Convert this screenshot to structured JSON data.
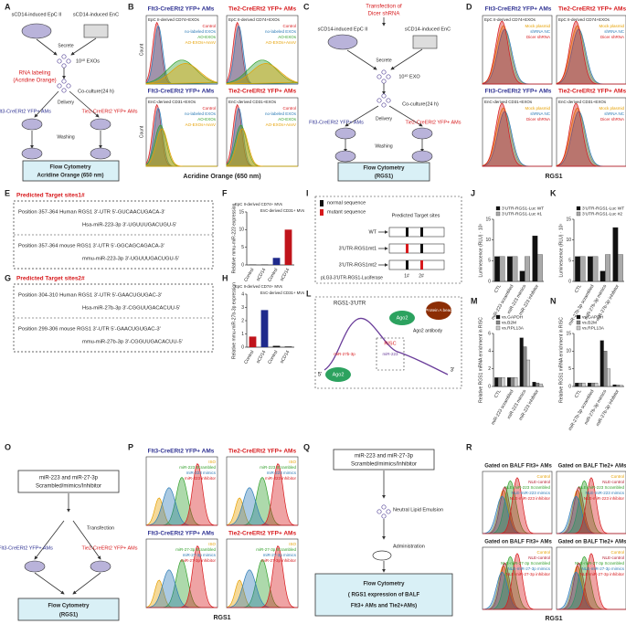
{
  "panel_labels": [
    "A",
    "B",
    "C",
    "D",
    "E",
    "F",
    "G",
    "H",
    "I",
    "J",
    "K",
    "L",
    "M",
    "N",
    "O",
    "P",
    "Q",
    "R"
  ],
  "A": {
    "epc": "sCD14-induced EpC II",
    "enc": "sCD14-induced EnC",
    "secrete": "Secrete",
    "exos": "10¹⁰ EXOs",
    "labeling1": "RNA labeling",
    "labeling2": "(Acridine Orange)",
    "coculture": "Co-culture(24 h)",
    "delivery": "Delivery",
    "flt3": "Flt3-CreERt2 YFP+ AMs",
    "tie2": "Tie2-CreERt2 YFP+ AMs",
    "washing": "Washing",
    "box1": "Flow Cytometry",
    "box2": "Acridine Orange (650 nm)"
  },
  "B": {
    "title1": "Flt3-CreERt2 YFP+ AMs",
    "title2": "Tie2-CreERt2 YFP+ AMs",
    "sub1": "EpC II-derived CD74+EXOs",
    "sub2": "EnC-derived CD31+EXOs",
    "legend": [
      "Control",
      "no-labeled EXOs",
      "AO-EXOs",
      "AO-EXOs+AnnV"
    ],
    "legend_colors": [
      "#d7191c",
      "#2c7bb6",
      "#33a02c",
      "#e6a000"
    ],
    "xlabel": "Acridine Orange (650 nm)",
    "ylabel": "Count"
  },
  "C": {
    "t1": "Transfection of",
    "t2": "Dicer shRNA",
    "epc": "sCD14-induced EpC II",
    "enc": "sCD14-induced EnC",
    "secrete": "Secrete",
    "exo": "10¹⁰ EXO",
    "coculture": "Co-culture(24 h)",
    "delivery": "Delivery",
    "flt3": "Flt3-CreERt2 YFP+ AMs",
    "tie2": "Tie2-CreERt2 YFP+ AMs",
    "washing": "Washing",
    "box1": "Flow Cytometry",
    "box2": "(RGS1)"
  },
  "D": {
    "title1": "Flt3-CreERt2 YFP+ AMs",
    "title2": "Tie2-CreERt2 YFP+ AMs",
    "sub1": "EpC II-derived CD74+EXOs",
    "sub2": "EnC-derived CD31+EXOs",
    "legend": [
      "Mock plasmid",
      "shRNA NC",
      "Dicer shRNA"
    ],
    "legend_colors": [
      "#e6a000",
      "#2c7bb6",
      "#d7191c"
    ],
    "xlabel": "RGS1"
  },
  "E": {
    "title": "Predicted Target sites1#",
    "l1": "Position 357-364 Human RGS1 3'-UTR 5'-GUCAACUGACA-3'",
    "l2": "Hsa-miR-223-3p 3'-UGUUUGACUGU-5'",
    "l3": "Position 357-364 mouse RGS1 3'-UTR 5'-GGCAGCAGACA-3'",
    "l4": "mmu-miR-223-3p 3'-UGUUUGACUGU-5'"
  },
  "G": {
    "title": "Predicted Target sites2#",
    "l1": "Position 304-310 Human RGS1 3'-UTR 5'-GAACUGUGAC-3'",
    "l2": "Hsa-miR-27b-3p 3'-CGGUUGACACUU-5'",
    "l3": "Position 299-306 mouse RGS1 3'-UTR 5'-GAACUGUGAC-3'",
    "l4": "mmu-miR-27b-3p 3'-CGGUUGACACUU-5'"
  },
  "I": {
    "normal": "normal sequence",
    "mutant": "mutant sequence",
    "sites": "Predicted Target sites",
    "wt": "WT",
    "mt1": "3'UTR-RGS1mt1",
    "mt2": "3'UTR-RGS1mt2",
    "vector": "pLG3-3'UTR-RGS1-Luciferase",
    "s1": "1#",
    "s2": "2#"
  },
  "L": {
    "utr": "RGS1-3'UTR",
    "ago2a": "Ago2",
    "bead": "Protein A bead",
    "antibody": "Ago2 antibody",
    "risc": "RISC",
    "mir27": "miR-27b-3p",
    "mir223": "miR-223",
    "ago2b": "Ago2",
    "p5": "5'",
    "p3": "3'"
  },
  "O": {
    "t1": "miR-223 and miR-27-3p",
    "t2": "Scrambled/mimics/Inhibitor",
    "transfection": "Transfection",
    "flt3": "Flt3-CreERt2 YFP+ AMs",
    "tie2": "Tie2-CreERt2 YFP+ AMs",
    "box1": "Flow Cytometry",
    "box2": "(RGS1)"
  },
  "P": {
    "title1": "Flt3-CreERt2 YFP+ AMs",
    "title2": "Tie2-CreERt2 YFP+ AMs",
    "legend1": [
      "ISO",
      "miR-223 Scrambled",
      "miR-223 mimics",
      "miR-223 inhibitor"
    ],
    "legend2": [
      "ISO",
      "miR-27-3p Scrambled",
      "miR-27-3p mimics",
      "miR-27-3p inhibitor"
    ],
    "legend_colors": [
      "#e6a000",
      "#33a02c",
      "#2c7bb6",
      "#d7191c"
    ],
    "xlabel": "RGS1"
  },
  "Q": {
    "t1": "miR-223 and miR-27-3p",
    "t2": "Scrambled/mimics/Inhibitor",
    "nle": "Neutral Lipid Emulsion",
    "admin": "Administration",
    "box1": "Flow Cytometry",
    "box2": "( RGS1 expression of BALF",
    "box3": "Flt3+ AMs and Tie2+AMs)"
  },
  "R": {
    "title1": "Gated on BALF Flt3+ AMs",
    "title2": "Gated on BALF Tie2+ AMs",
    "legend1": [
      "Control",
      "NLE-control",
      "NLE-miR-223 Scrambled",
      "NLE-miR-223 mimics",
      "NLE-miR-223 inhibitor"
    ],
    "legend2": [
      "Control",
      "NLE-control",
      "NLE-miR-27-3p Scrambled",
      "NLE-miR-27-3p mimics",
      "NLE-miR-27-3p inhibitor"
    ],
    "legend_colors": [
      "#e6a000",
      "#b2182b",
      "#33a02c",
      "#2c7bb6",
      "#d7191c"
    ],
    "xlabel": "RGS1"
  },
  "charts": {
    "F": {
      "type": "bar",
      "ylabel": "Relative mmu-miR-223 expression",
      "categories": [
        "Control",
        "sCD14",
        "Control",
        "sCD14"
      ],
      "values": [
        0.1,
        0.1,
        2,
        10
      ],
      "colors": [
        "#111111",
        "#111111",
        "#1f2a8c",
        "#c0141b"
      ],
      "ylim": [
        0,
        15
      ],
      "yticks": [
        0,
        5,
        10,
        15
      ],
      "group_labels": [
        "EpC II-derived CD74+ MVs",
        "EnC-derived CD31+ MVs"
      ]
    },
    "H": {
      "type": "bar",
      "ylabel": "Relative mmu-miR-27b-3p expression",
      "categories": [
        "Control",
        "sCD14",
        "Control",
        "sCD14"
      ],
      "values": [
        0.8,
        2.8,
        0.1,
        0.05
      ],
      "colors": [
        "#c0141b",
        "#1f2a8c",
        "#111111",
        "#111111"
      ],
      "ylim": [
        0,
        4
      ],
      "yticks": [
        0,
        1,
        2,
        3,
        4
      ],
      "group_labels": [
        "EpC II-derived CD74+ MVs",
        "EnC-derived CD31+ MVs"
      ]
    },
    "J": {
      "type": "bar",
      "ylabel": "Luminescence (RLU) · 10⁵",
      "categories": [
        "CTL",
        "miR-223 scrambled",
        "miR-223 mimics",
        "miR-223 inhibitor"
      ],
      "series": [
        {
          "name": "3'UTR-RGS1-Luc WT",
          "color": "#111111",
          "values": [
            6,
            6,
            2.5,
            11
          ]
        },
        {
          "name": "3'UTR-RGS1-Luc #1",
          "color": "#aaaaaa",
          "values": [
            6,
            6,
            6,
            6.5
          ]
        }
      ],
      "ylim": [
        0,
        15
      ],
      "yticks": [
        0,
        5,
        10,
        15
      ]
    },
    "K": {
      "type": "bar",
      "ylabel": "Luminescence (RLU) · 10⁵",
      "categories": [
        "CTL",
        "miR-27b-3p scrambled",
        "miR-27b-3p mimics",
        "miR-27b-3p inhibitor"
      ],
      "series": [
        {
          "name": "3'UTR-RGS1-Luc WT",
          "color": "#111111",
          "values": [
            6,
            6,
            2.5,
            13
          ]
        },
        {
          "name": "3'UTR-RGS1-Luc #2",
          "color": "#aaaaaa",
          "values": [
            6,
            6,
            6.5,
            6.5
          ]
        }
      ],
      "ylim": [
        0,
        15
      ],
      "yticks": [
        0,
        5,
        10,
        15
      ]
    },
    "M": {
      "type": "bar",
      "ylabel": "Relative RGS1 mRNA enrichment in RISC",
      "categories": [
        "CTL",
        "miR-223 scrambled",
        "miR-223 mimics",
        "miR-223 inhibitor"
      ],
      "series": [
        {
          "name": "vs.GAPDH",
          "color": "#111111",
          "values": [
            1,
            1,
            5.5,
            0.5
          ]
        },
        {
          "name": "vs.B2M",
          "color": "#888888",
          "values": [
            1,
            1,
            4.5,
            0.4
          ]
        },
        {
          "name": "vs.RPL13A",
          "color": "#cccccc",
          "values": [
            1,
            1,
            3,
            0.3
          ]
        }
      ],
      "ylim": [
        0,
        6
      ],
      "yticks": [
        0,
        2,
        4,
        6
      ]
    },
    "N": {
      "type": "bar",
      "ylabel": "Relative RGS1 mRNA enrichment in RISC",
      "categories": [
        "CTL",
        "miR-27b-3p scrambled",
        "miR-27b-3p mimics",
        "miR-27b-3p inhibitor"
      ],
      "series": [
        {
          "name": "vs.GAPDH",
          "color": "#111111",
          "values": [
            1,
            1,
            13,
            0.5
          ]
        },
        {
          "name": "vs.B2M",
          "color": "#888888",
          "values": [
            1,
            1,
            10,
            0.4
          ]
        },
        {
          "name": "vs.RPL13A",
          "color": "#cccccc",
          "values": [
            1,
            1,
            5,
            0.3
          ]
        }
      ],
      "ylim": [
        0,
        15
      ],
      "yticks": [
        0,
        5,
        10,
        15
      ]
    }
  }
}
